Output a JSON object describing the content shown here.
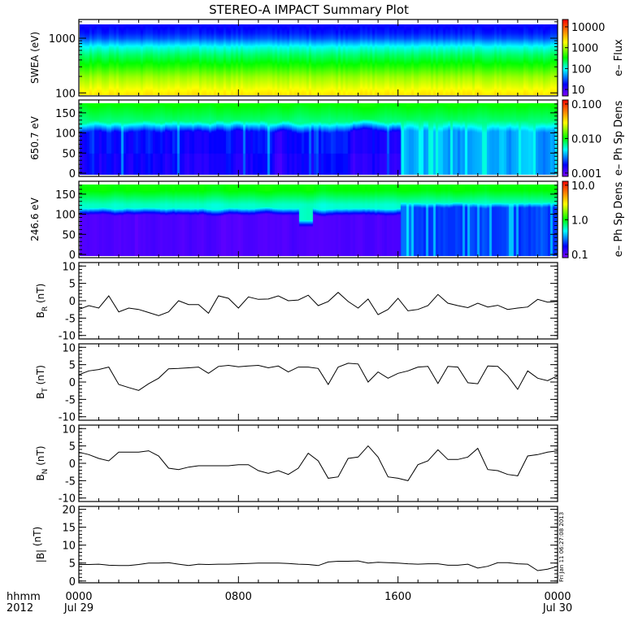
{
  "title": "STEREO-A IMPACT Summary Plot",
  "timestamp": "Fri Jan 11 06:27:08 2013",
  "x_axis": {
    "row1_label": "hhmm",
    "row2_label": "2012",
    "range_hours": [
      0,
      24
    ],
    "ticks": [
      {
        "hour": 0,
        "time": "0000",
        "date": "Jul 29"
      },
      {
        "hour": 8,
        "time": "0800",
        "date": ""
      },
      {
        "hour": 16,
        "time": "1600",
        "date": ""
      },
      {
        "hour": 24,
        "time": "0000",
        "date": "Jul 30"
      }
    ]
  },
  "chart_data": [
    {
      "type": "heatmap",
      "ylabel": "SWEA (eV)",
      "yscale": "log",
      "ylim": [
        88,
        2200
      ],
      "yticks": [
        {
          "v": 100,
          "label": "100"
        },
        {
          "v": 1000,
          "label": "1000"
        }
      ],
      "colorbar": {
        "label": "e– Flux",
        "scale": "log",
        "clim": [
          4.9,
          22400
        ],
        "ticks": [
          {
            "v": 10,
            "label": "10"
          },
          {
            "v": 100,
            "label": "100"
          },
          {
            "v": 1000,
            "label": "1000"
          },
          {
            "v": 10000,
            "label": "10000"
          }
        ]
      }
    },
    {
      "type": "heatmap",
      "ylabel": "650.7 eV",
      "yscale": "linear",
      "ylim": [
        -8,
        182
      ],
      "yticks": [
        {
          "v": 0,
          "label": "0"
        },
        {
          "v": 50,
          "label": "50"
        },
        {
          "v": 100,
          "label": "100"
        },
        {
          "v": 150,
          "label": "150"
        }
      ],
      "colorbar": {
        "label": "e– Ph Sp Dens",
        "scale": "log",
        "clim": [
          0.0008,
          0.131
        ],
        "ticks": [
          {
            "v": 0.001,
            "label": "0.001"
          },
          {
            "v": 0.01,
            "label": "0.010"
          },
          {
            "v": 0.1,
            "label": "0.100"
          }
        ]
      }
    },
    {
      "type": "heatmap",
      "ylabel": "246.6 eV",
      "yscale": "linear",
      "ylim": [
        -8,
        182
      ],
      "yticks": [
        {
          "v": 0,
          "label": "0"
        },
        {
          "v": 50,
          "label": "50"
        },
        {
          "v": 100,
          "label": "100"
        },
        {
          "v": 150,
          "label": "150"
        }
      ],
      "colorbar": {
        "label": "e– Ph Sp Dens",
        "scale": "log",
        "clim": [
          0.08,
          13
        ],
        "ticks": [
          {
            "v": 0.1,
            "label": "0.1"
          },
          {
            "v": 1,
            "label": "1.0"
          },
          {
            "v": 10,
            "label": "10.0"
          }
        ]
      }
    },
    {
      "type": "line",
      "ylabel": {
        "main": "B",
        "sub": "R",
        "unit": " (nT)"
      },
      "ylim": [
        -11,
        11
      ],
      "yticks": [
        {
          "v": -10,
          "label": "-10"
        },
        {
          "v": -5,
          "label": "-5"
        },
        {
          "v": 0,
          "label": "0"
        },
        {
          "v": 5,
          "label": "5"
        },
        {
          "v": 10,
          "label": "10"
        }
      ],
      "values": [
        -2.5,
        -1.4,
        -2.1,
        1.4,
        -3.2,
        -2.1,
        -2.5,
        -3.4,
        -4.3,
        -3.2,
        0,
        -1.1,
        -1.1,
        -3.6,
        1.4,
        0.7,
        -2.1,
        1.1,
        0.4,
        0.5,
        1.4,
        0,
        0.2,
        1.6,
        -1.4,
        -0.2,
        2.4,
        -0.2,
        -2.1,
        0.5,
        -4,
        -2.5,
        0.7,
        -2.9,
        -2.5,
        -1.4,
        1.8,
        -0.7,
        -1.4,
        -2,
        -0.7,
        -1.8,
        -1.3,
        -2.5,
        -2.1,
        -1.8,
        0.4,
        -0.4,
        -0.2
      ]
    },
    {
      "type": "line",
      "ylabel": {
        "main": "B",
        "sub": "T",
        "unit": " (nT)"
      },
      "ylim": [
        -11,
        11
      ],
      "yticks": [
        {
          "v": -10,
          "label": "-10"
        },
        {
          "v": -5,
          "label": "-5"
        },
        {
          "v": 0,
          "label": "0"
        },
        {
          "v": 5,
          "label": "5"
        },
        {
          "v": 10,
          "label": "10"
        }
      ],
      "values": [
        2.1,
        3.2,
        3.6,
        4.3,
        -0.7,
        -1.6,
        -2.4,
        -0.5,
        1.1,
        3.8,
        3.9,
        4.1,
        4.3,
        2.5,
        4.5,
        4.8,
        4.4,
        4.6,
        4.8,
        4.1,
        4.6,
        2.9,
        4.3,
        4.3,
        3.9,
        -0.7,
        4.3,
        5.4,
        5.2,
        0,
        2.9,
        1.1,
        2.5,
        3.2,
        4.3,
        4.5,
        -0.4,
        4.5,
        4.3,
        -0.2,
        -0.5,
        4.6,
        4.5,
        1.8,
        -2.1,
        3.2,
        1.1,
        0.4,
        1.8
      ]
    },
    {
      "type": "line",
      "ylabel": {
        "main": "B",
        "sub": "N",
        "unit": " (nT)"
      },
      "ylim": [
        -11,
        11
      ],
      "yticks": [
        {
          "v": -10,
          "label": "-10"
        },
        {
          "v": -5,
          "label": "-5"
        },
        {
          "v": 0,
          "label": "0"
        },
        {
          "v": 5,
          "label": "5"
        },
        {
          "v": 10,
          "label": "10"
        }
      ],
      "values": [
        3.2,
        2.5,
        1.4,
        0.7,
        3.2,
        3.2,
        3.2,
        3.6,
        2.1,
        -1.4,
        -1.8,
        -1.1,
        -0.7,
        -0.7,
        -0.7,
        -0.7,
        -0.4,
        -0.4,
        -2.1,
        -2.9,
        -2.1,
        -3.2,
        -1.4,
        2.9,
        0.7,
        -4.3,
        -3.9,
        1.4,
        1.8,
        5,
        1.8,
        -3.9,
        -4.3,
        -5,
        -0.4,
        0.7,
        3.9,
        1.1,
        1.1,
        1.8,
        4.3,
        -1.8,
        -2.1,
        -3.2,
        -3.6,
        2.1,
        2.5,
        3.2,
        3.6
      ]
    },
    {
      "type": "line",
      "ylabel": {
        "main": "|B|",
        "sub": "",
        "unit": " (nT)"
      },
      "ylim": [
        -0.5,
        20.8
      ],
      "yticks": [
        {
          "v": 0,
          "label": "0"
        },
        {
          "v": 5,
          "label": "5"
        },
        {
          "v": 10,
          "label": "10"
        },
        {
          "v": 15,
          "label": "15"
        },
        {
          "v": 20,
          "label": "20"
        }
      ],
      "values": [
        4.6,
        4.6,
        4.7,
        4.4,
        4.3,
        4.3,
        4.6,
        5.0,
        5.0,
        5.1,
        4.7,
        4.3,
        4.7,
        4.6,
        4.7,
        4.7,
        4.8,
        4.9,
        5.0,
        5.0,
        5.0,
        4.9,
        4.7,
        4.6,
        4.3,
        5.3,
        5.5,
        5.5,
        5.6,
        5.0,
        5.2,
        5.1,
        5.0,
        4.8,
        4.7,
        4.8,
        4.8,
        4.4,
        4.4,
        4.7,
        3.6,
        4.1,
        5.1,
        5.1,
        4.8,
        4.7,
        2.9,
        3.3,
        4.1
      ]
    }
  ]
}
